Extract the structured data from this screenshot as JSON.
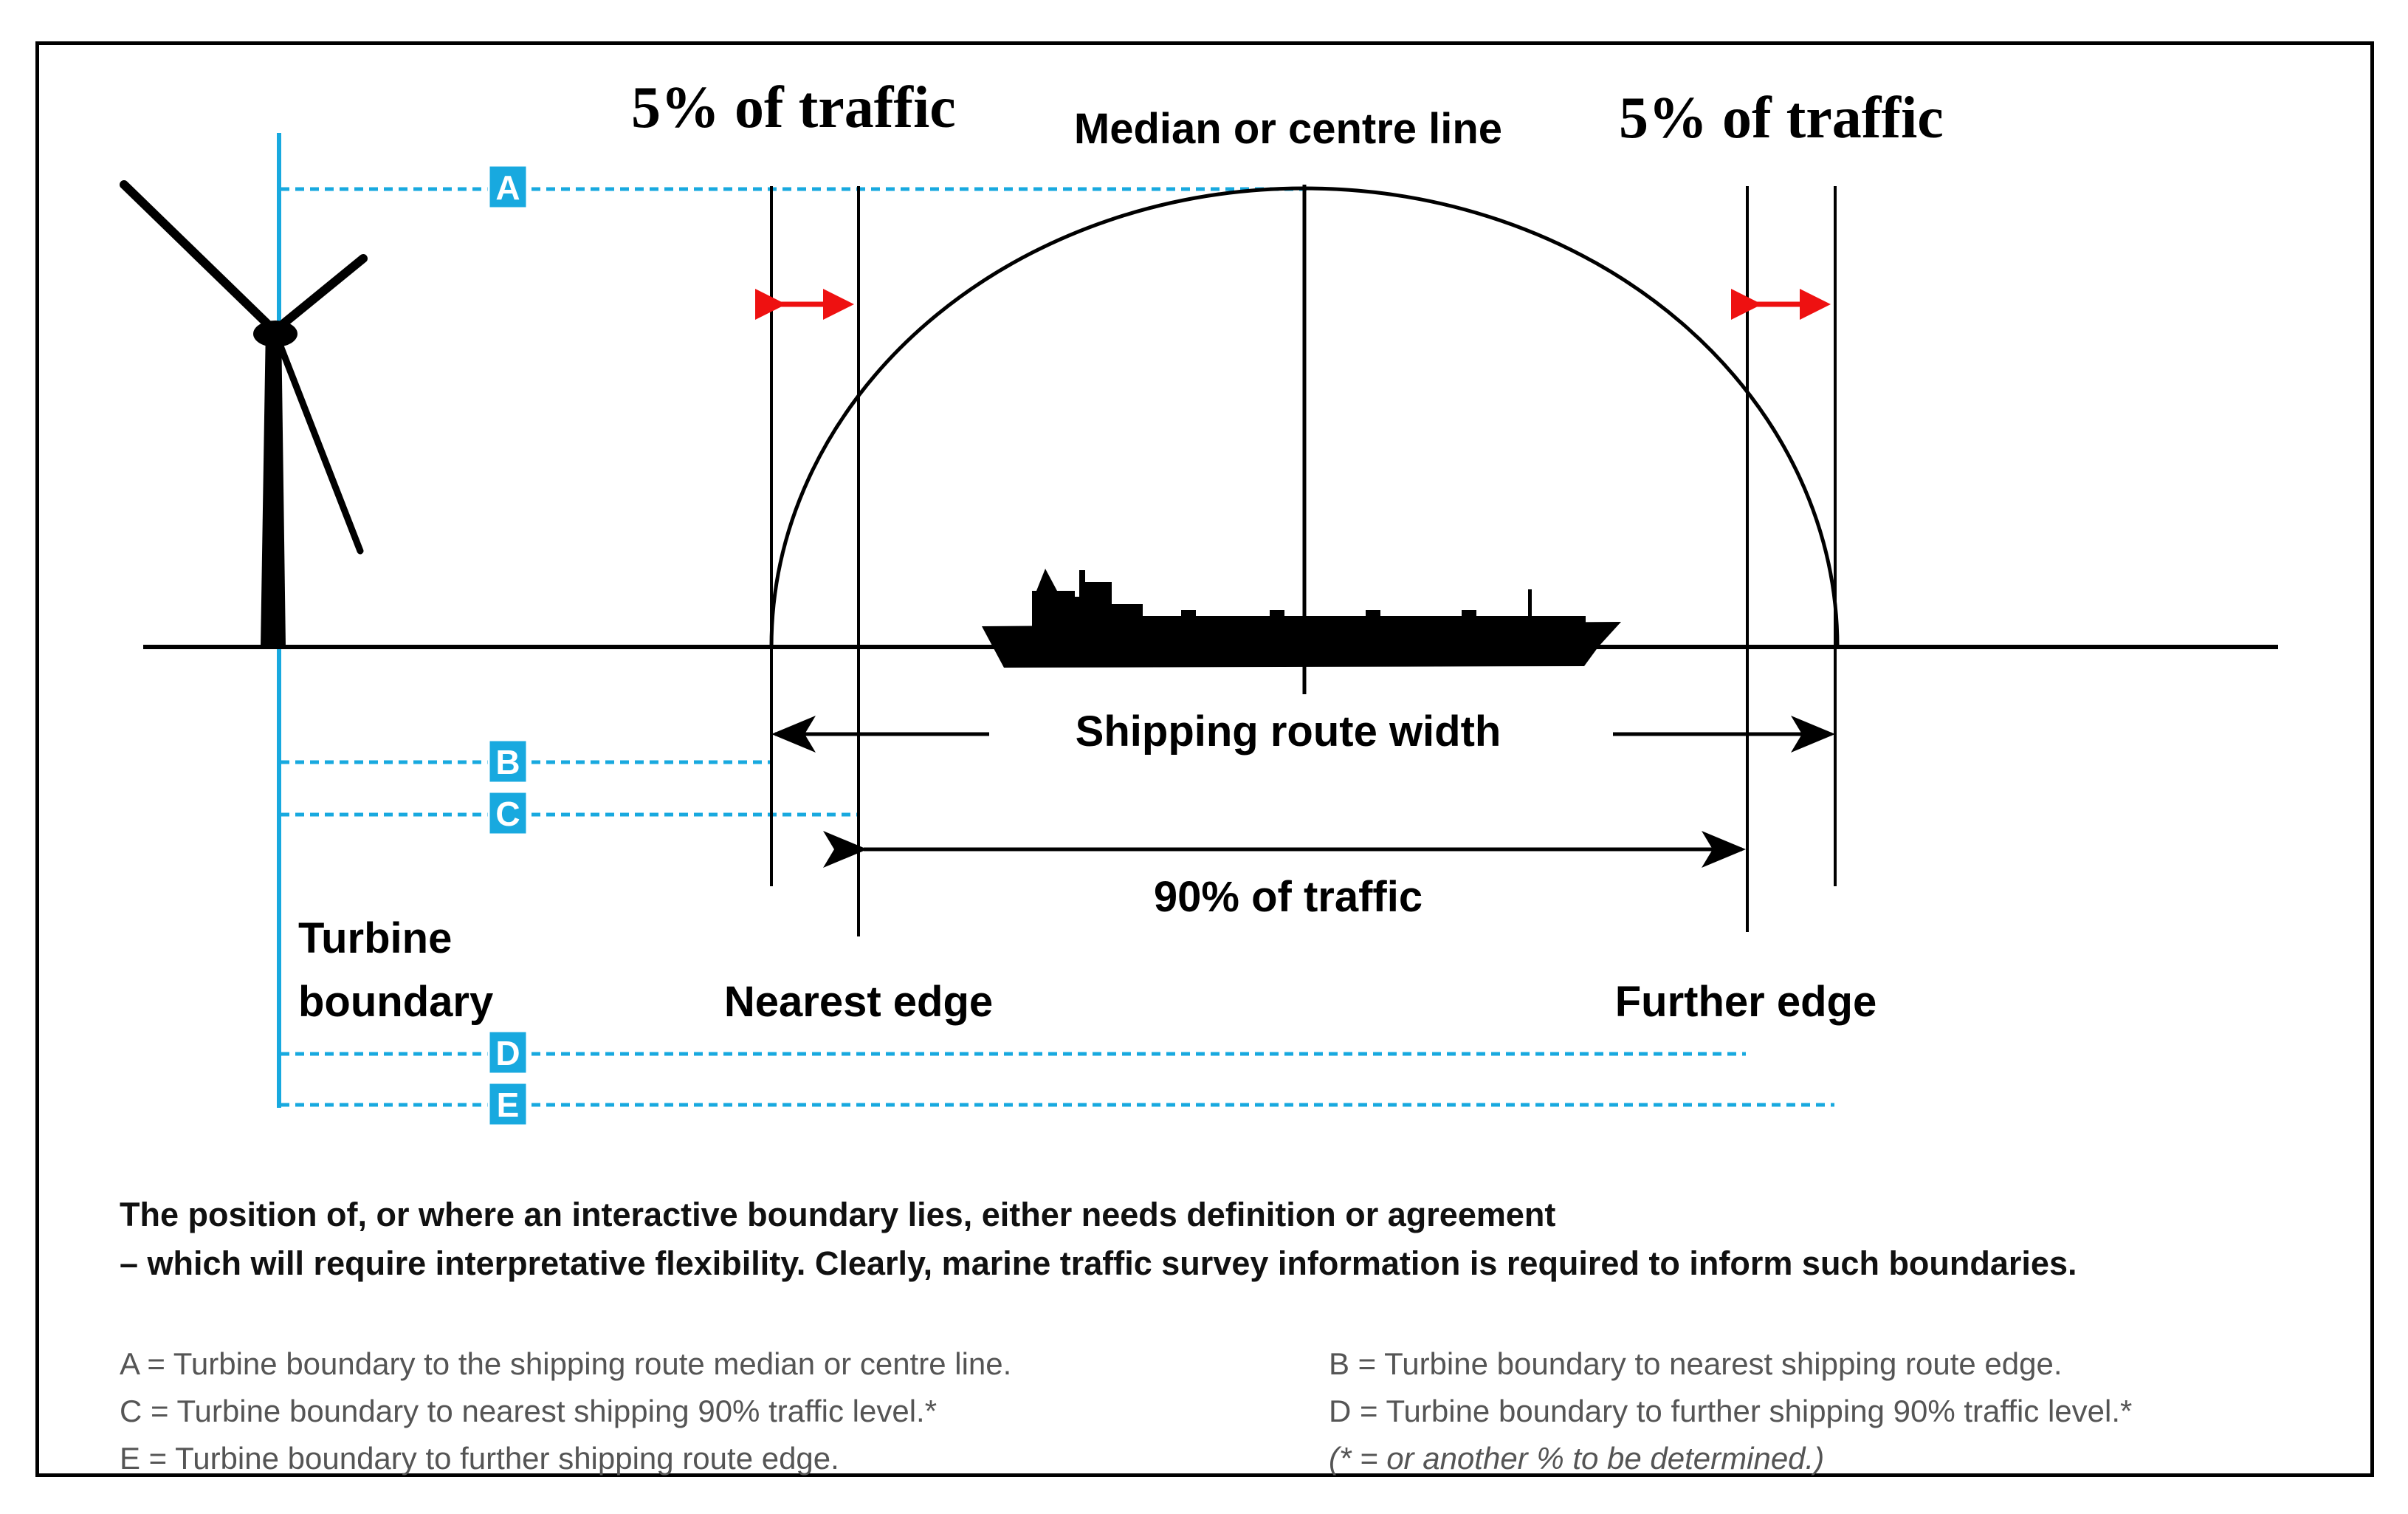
{
  "labels": {
    "left_pct": "5% of traffic",
    "right_pct": "5% of traffic",
    "median": "Median or centre line",
    "route_width": "Shipping route width",
    "ninety": "90% of traffic",
    "turbine_1": "Turbine",
    "turbine_2": "boundary",
    "nearest": "Nearest edge",
    "further": "Further edge"
  },
  "badges": [
    "A",
    "B",
    "C",
    "D",
    "E"
  ],
  "caption": [
    "The position of, or where an interactive boundary lies, either needs definition or agreement",
    "– which will require interpretative flexibility. Clearly, marine traffic survey information is required to inform such boundaries."
  ],
  "legend_left": [
    "A = Turbine boundary to the shipping route median or centre line.",
    "C = Turbine boundary to nearest shipping 90% traffic level.*",
    "E = Turbine boundary to further shipping route edge."
  ],
  "legend_right": [
    "B = Turbine boundary to nearest shipping route edge.",
    "D = Turbine boundary to further shipping 90% traffic level.*",
    "(* = or another % to be determined.)"
  ],
  "colors": {
    "boundary_blue": "#18a9df",
    "arrow_red": "#ee1111",
    "line": "#000000"
  }
}
